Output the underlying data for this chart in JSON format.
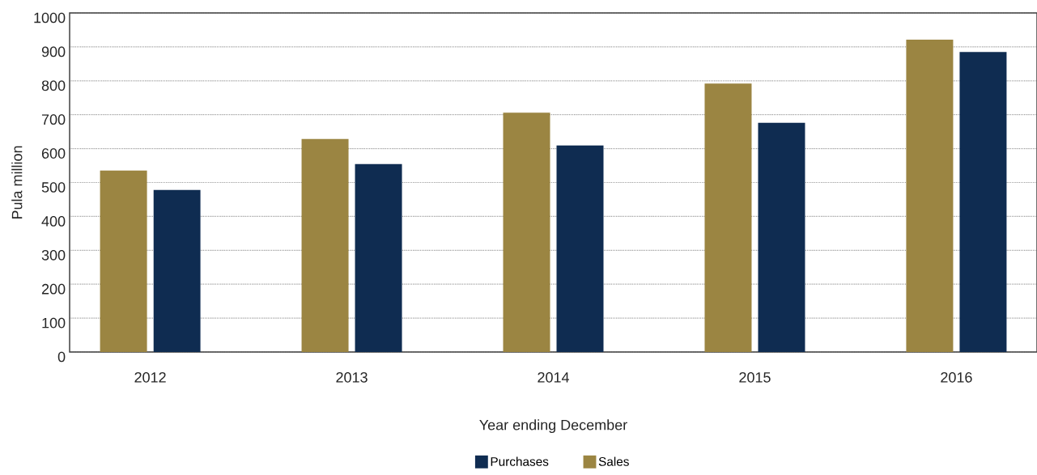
{
  "chart_data": {
    "type": "bar",
    "xlabel": "Year ending December",
    "ylabel": "Pula million",
    "categories": [
      "2012",
      "2013",
      "2014",
      "2015",
      "2016"
    ],
    "series": [
      {
        "name": "Sales",
        "color": "#9b8542",
        "values": [
          535,
          628,
          706,
          792,
          921
        ]
      },
      {
        "name": "Purchases",
        "color": "#0f2c51",
        "values": [
          478,
          554,
          609,
          676,
          885
        ]
      }
    ],
    "ylim": [
      0,
      1000
    ],
    "yticks": [
      0,
      100,
      200,
      300,
      400,
      500,
      600,
      700,
      800,
      900,
      1000
    ],
    "grid": "y",
    "legend": "bottom"
  }
}
